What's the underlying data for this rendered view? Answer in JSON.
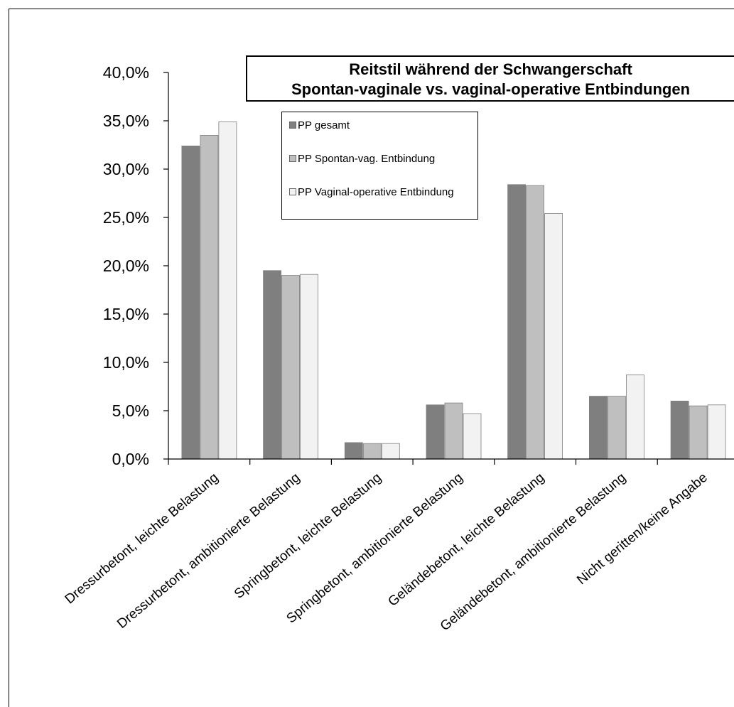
{
  "chart_data": {
    "type": "bar",
    "title": "Reitstil während der Schwangerschaft",
    "subtitle": "Spontan-vaginale vs. vaginal-operative Entbindungen",
    "categories": [
      "Dressurbetont, leichte Belastung",
      "Dressurbetont, ambitionierte Belastung",
      "Springbetont, leichte Belastung",
      "Springbetont, ambitionierte Belastung",
      "Geländebetont, leichte Belastung",
      "Geländebetont, ambitionierte Belastung",
      "Nicht geritten/keine Angabe"
    ],
    "series": [
      {
        "name": "PP gesamt",
        "color": "#7f7f7f",
        "values": [
          32.4,
          19.5,
          1.7,
          5.6,
          28.4,
          6.5,
          6.0
        ]
      },
      {
        "name": "PP Spontan-vag. Entbindung",
        "color": "#bfbfbf",
        "values": [
          33.5,
          19.0,
          1.6,
          5.8,
          28.3,
          6.5,
          5.5
        ]
      },
      {
        "name": "PP Vaginal-operative Entbindung",
        "color": "#f2f2f2",
        "values": [
          34.9,
          19.1,
          1.6,
          4.7,
          25.4,
          8.7,
          5.6
        ]
      }
    ],
    "ylim": [
      0,
      40
    ],
    "yticks": [
      "0,0%",
      "5,0%",
      "10,0%",
      "15,0%",
      "20,0%",
      "25,0%",
      "30,0%",
      "35,0%",
      "40,0%"
    ],
    "xlabel": "",
    "ylabel": "",
    "grid": false,
    "legend": "top-center"
  }
}
